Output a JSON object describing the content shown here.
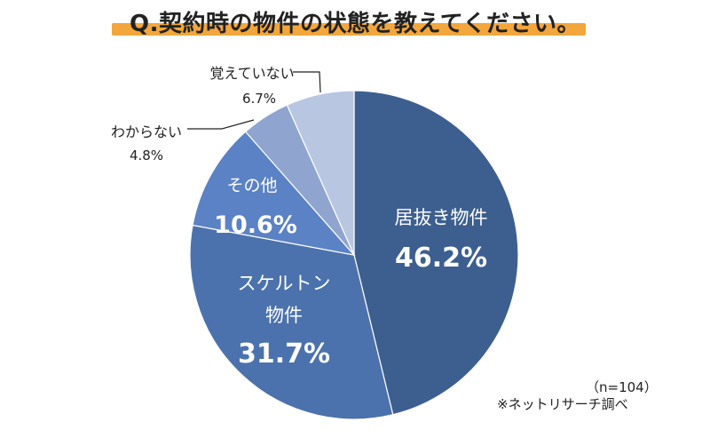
{
  "title": "Q.契約時の物件の状態を教えてください。",
  "sample_size": "（n=104）",
  "source_note": "※ネットリサーチ調べ",
  "colors": {
    "title_underline": "#f3a63b",
    "slice_1": "#3d5f8f",
    "slice_2": "#4b72ad",
    "slice_3": "#5b82c4",
    "slice_4": "#8fa5cf",
    "slice_5": "#b9c6e2"
  },
  "chart_data": {
    "type": "pie",
    "title": "Q.契約時の物件の状態を教えてください。",
    "start": "12 o'clock",
    "direction": "clockwise",
    "slices": [
      {
        "label": "居抜き物件",
        "value": 46.2,
        "value_label": "46.2%"
      },
      {
        "label": "スケルトン物件",
        "value": 31.7,
        "value_label": "31.7%"
      },
      {
        "label": "その他",
        "value": 10.6,
        "value_label": "10.6%"
      },
      {
        "label": "わからない",
        "value": 4.8,
        "value_label": "4.8%"
      },
      {
        "label": "覚えていない",
        "value": 6.7,
        "value_label": "6.7%"
      }
    ]
  }
}
